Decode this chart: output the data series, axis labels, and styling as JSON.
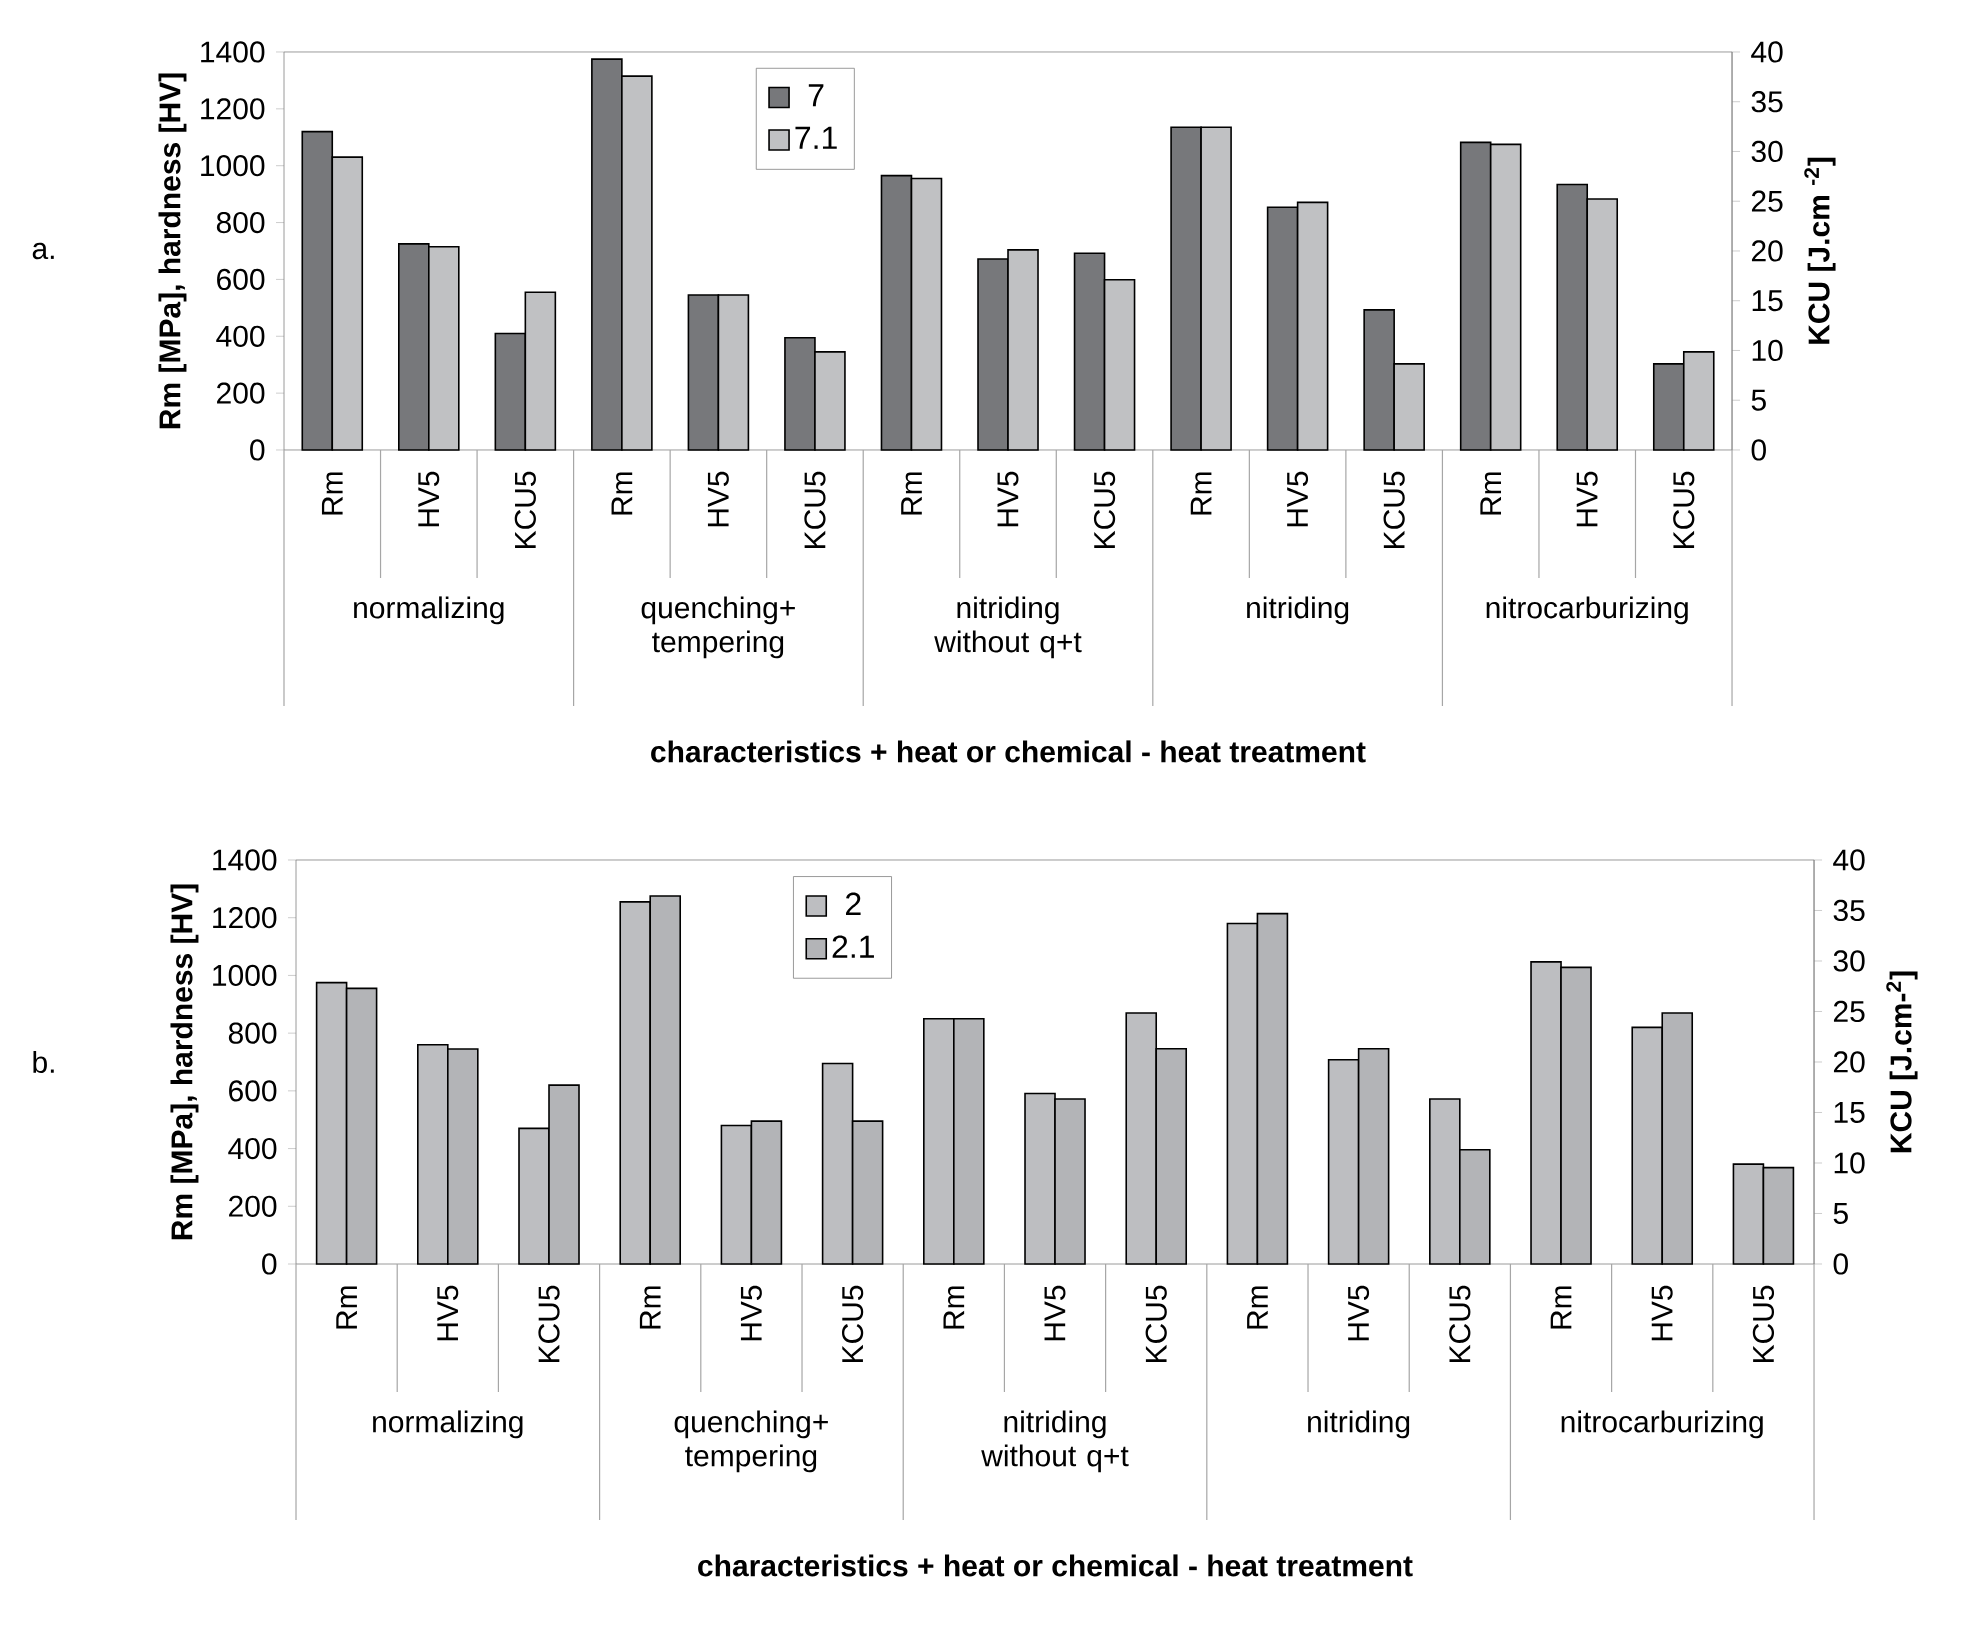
{
  "chart_data": [
    {
      "type": "bar",
      "xlabel": "characteristics + heat or chemical - heat treatment",
      "ylabel": "Rm [MPa], hardness [HV]",
      "y2label": "KCU [J.cm $^{-2}$]",
      "categories": [
        "Rm",
        "HV5",
        "KCU5",
        "Rm",
        "HV5",
        "KCU5",
        "Rm",
        "HV5",
        "KCU5",
        "Rm",
        "HV5",
        "KCU5",
        "Rm",
        "HV5",
        "KCU5"
      ],
      "series": [
        {
          "name": "7",
          "color": "#77787b",
          "values": [
            1120,
            725,
            410,
            1375,
            545,
            395,
            965,
            672,
            692,
            1135,
            854,
            493,
            1082,
            934,
            303
          ]
        },
        {
          "name": "7.1",
          "color": "#c0c1c3",
          "values": [
            1030,
            715,
            555,
            1315,
            545,
            345,
            955,
            704,
            599,
            1135,
            871,
            303,
            1075,
            883,
            345
          ]
        }
      ],
      "ylim": [
        0,
        1400
      ],
      "yticks": [
        0,
        200,
        400,
        600,
        800,
        1000,
        1200,
        1400
      ],
      "y2lim": [
        0,
        40
      ],
      "y2ticks": [
        0,
        5,
        10,
        15,
        20,
        25,
        30,
        35,
        40
      ],
      "legend": "top",
      "grid": false,
      "annotations": [
        "a.",
        "normalizing",
        "quenching+ tempering",
        "nitriding without q+t",
        "nitriding",
        "nitrocarburizing"
      ]
    },
    {
      "type": "bar",
      "xlabel": "characteristics + heat or chemical - heat treatment",
      "ylabel": "Rm [MPa], hardness [HV]",
      "y2label": "KCU [J.cm-$^{2}$]",
      "categories": [
        "Rm",
        "HV5",
        "KCU5",
        "Rm",
        "HV5",
        "KCU5",
        "Rm",
        "HV5",
        "KCU5",
        "Rm",
        "HV5",
        "KCU5",
        "Rm",
        "HV5",
        "KCU5"
      ],
      "series": [
        {
          "name": "2",
          "color": "#bdbec1",
          "values": [
            975,
            760,
            470,
            1255,
            480,
            695,
            850,
            591,
            870,
            1180,
            708,
            572,
            1047,
            820,
            346
          ]
        },
        {
          "name": "2.1",
          "color": "#b3b4b7",
          "values": [
            955,
            745,
            620,
            1275,
            495,
            495,
            850,
            572,
            746,
            1214,
            746,
            396,
            1028,
            870,
            334
          ]
        }
      ],
      "ylim": [
        0,
        1400
      ],
      "yticks": [
        0,
        200,
        400,
        600,
        800,
        1000,
        1200,
        1400
      ],
      "y2lim": [
        0,
        40
      ],
      "y2ticks": [
        0,
        5,
        10,
        15,
        20,
        25,
        30,
        35,
        40
      ],
      "legend": "top",
      "grid": false,
      "annotations": [
        "b.",
        "normalizing",
        "quenching+ tempering",
        "nitriding without q+t",
        "nitriding",
        "nitrocarburizing"
      ]
    }
  ]
}
